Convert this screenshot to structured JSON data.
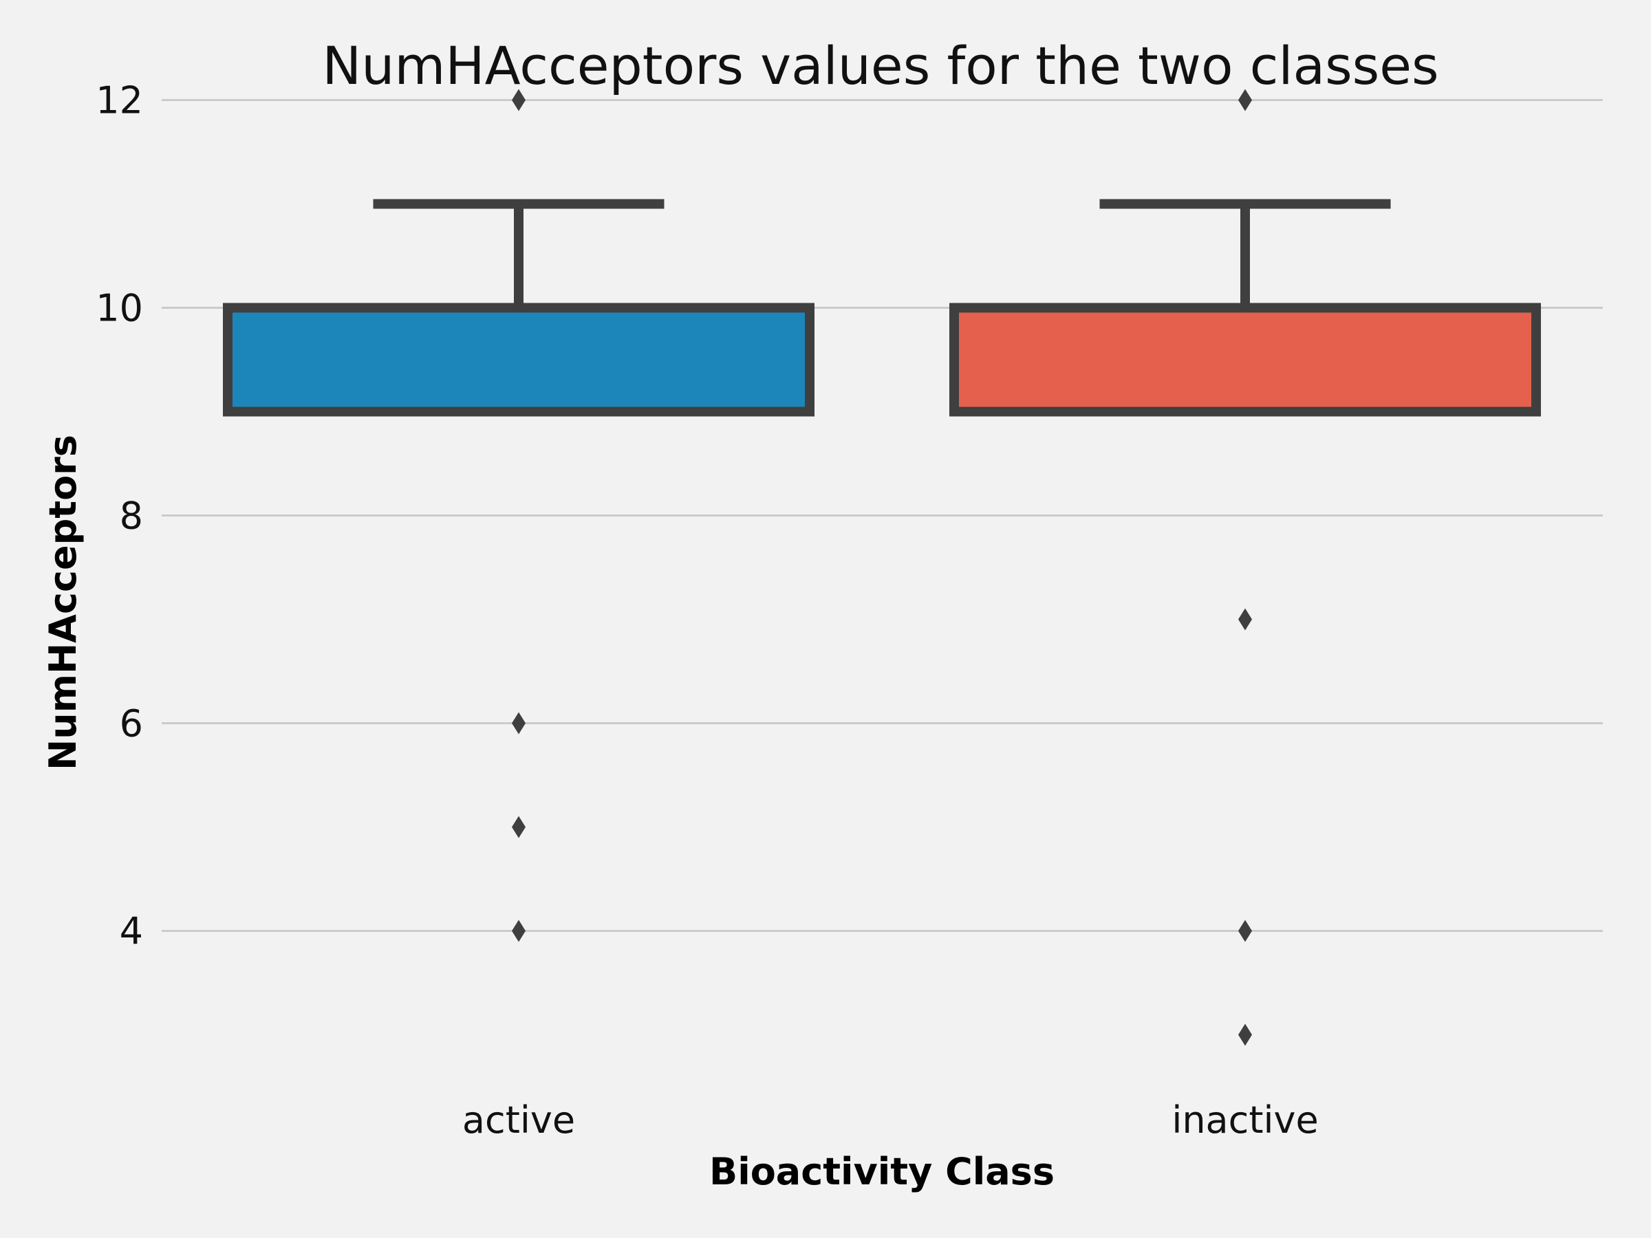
{
  "chart_data": {
    "type": "box",
    "title": "NumHAcceptors values for the two classes",
    "xlabel": "Bioactivity Class",
    "ylabel": "NumHAcceptors",
    "categories": [
      "active",
      "inactive"
    ],
    "ylim": [
      2.5,
      12.5
    ],
    "yticks": [
      4,
      6,
      8,
      10,
      12
    ],
    "grid": true,
    "grid_axis": "y",
    "boxes": [
      {
        "name": "active",
        "color": "#1c86bb",
        "whisker_low": 9,
        "q1": 9,
        "median": 9,
        "q3": 10,
        "whisker_high": 11,
        "outliers": [
          12,
          6,
          5,
          4
        ]
      },
      {
        "name": "inactive",
        "color": "#e5614d",
        "whisker_low": 9,
        "q1": 9,
        "median": 9,
        "q3": 10,
        "whisker_high": 11,
        "outliers": [
          12,
          7,
          4,
          3
        ]
      }
    ],
    "edge_color": "#3f3f3f",
    "background": "#f2f2f2"
  }
}
